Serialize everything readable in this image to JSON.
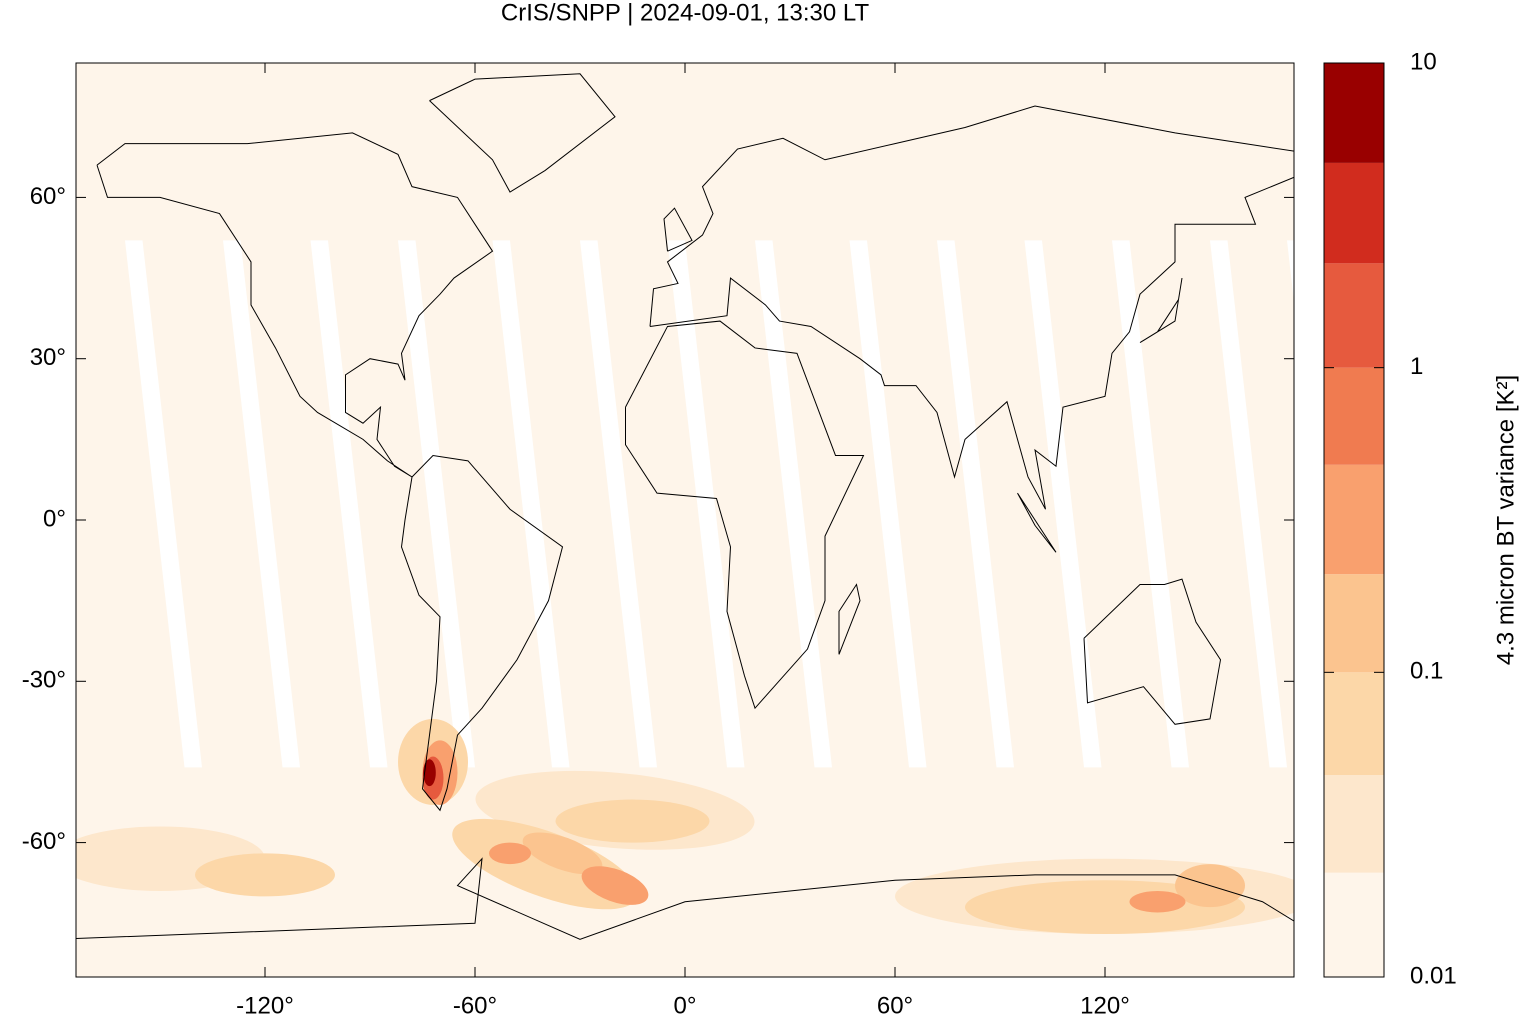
{
  "chart_data": {
    "type": "map",
    "title": "CrIS/SNPP | 2024-09-01, 13:30 LT",
    "xlim": [
      -174,
      174
    ],
    "ylim": [
      -85,
      85
    ],
    "xticks": [
      {
        "value": -120,
        "label": "-120°"
      },
      {
        "value": -60,
        "label": "-60°"
      },
      {
        "value": 0,
        "label": "0°"
      },
      {
        "value": 60,
        "label": "60°"
      },
      {
        "value": 120,
        "label": "120°"
      }
    ],
    "yticks": [
      {
        "value": 60,
        "label": "60°"
      },
      {
        "value": 30,
        "label": "30°"
      },
      {
        "value": 0,
        "label": "0°"
      },
      {
        "value": -30,
        "label": "-30°"
      },
      {
        "value": -60,
        "label": "-60°"
      }
    ],
    "colorbar": {
      "label": "4.3 micron BT variance [K²]",
      "log_scale": true,
      "clim": [
        0.01,
        10
      ],
      "ticks": [
        0.01,
        0.1,
        1,
        10
      ],
      "levels": [
        0.01,
        0.022,
        0.046,
        0.1,
        0.21,
        0.48,
        1,
        2.2,
        4.7,
        10
      ],
      "colors": [
        "#fef5ea",
        "#fde7cc",
        "#fcd7a8",
        "#fbc48f",
        "#f9a06e",
        "#f07b50",
        "#e65a3e",
        "#d12c1e",
        "#990000"
      ]
    }
  }
}
